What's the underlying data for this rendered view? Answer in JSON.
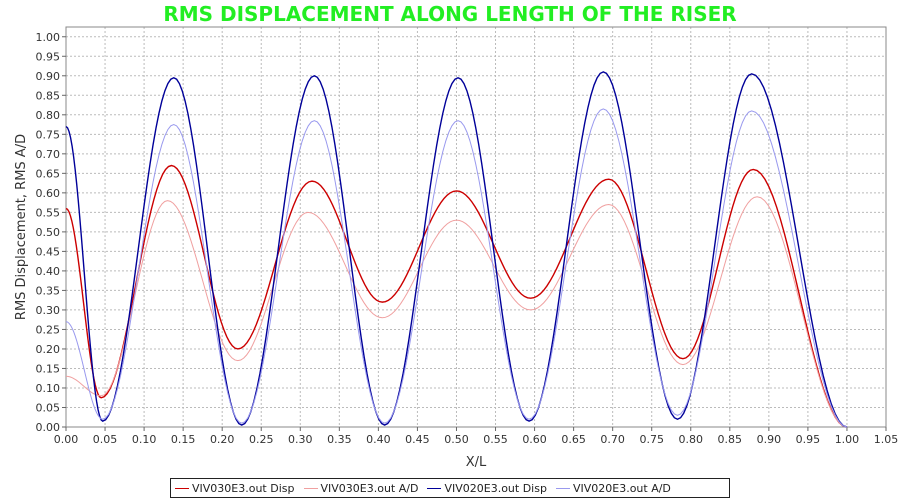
{
  "chart_data": {
    "type": "line",
    "title": "RMS DISPLACEMENT ALONG LENGTH OF THE RISER",
    "xlabel": "X/L",
    "ylabel": "RMS Displacement,  RMS A/D",
    "xlim": [
      0,
      1.05
    ],
    "ylim": [
      0,
      1.025
    ],
    "x_ticks": [
      "0.00",
      "0.05",
      "0.10",
      "0.15",
      "0.20",
      "0.25",
      "0.30",
      "0.35",
      "0.40",
      "0.45",
      "0.50",
      "0.55",
      "0.60",
      "0.65",
      "0.70",
      "0.75",
      "0.80",
      "0.85",
      "0.90",
      "0.95",
      "1.00",
      "1.05"
    ],
    "y_ticks": [
      "0.00",
      "0.05",
      "0.10",
      "0.15",
      "0.20",
      "0.25",
      "0.30",
      "0.35",
      "0.40",
      "0.45",
      "0.50",
      "0.55",
      "0.60",
      "0.65",
      "0.70",
      "0.75",
      "0.80",
      "0.85",
      "0.90",
      "0.95",
      "1.00"
    ],
    "grid": true,
    "legend_position": "bottom",
    "series": [
      {
        "name": "VIV030E3.out Disp",
        "color": "#cc0000",
        "x": [
          0.0,
          0.045,
          0.135,
          0.22,
          0.315,
          0.405,
          0.5,
          0.595,
          0.695,
          0.79,
          0.88,
          1.0
        ],
        "y": [
          0.56,
          0.075,
          0.67,
          0.2,
          0.63,
          0.32,
          0.605,
          0.33,
          0.635,
          0.175,
          0.66,
          0.0
        ]
      },
      {
        "name": "VIV030E3.out A/D",
        "color": "#f0a0a0",
        "x": [
          0.0,
          0.045,
          0.13,
          0.22,
          0.31,
          0.405,
          0.5,
          0.595,
          0.695,
          0.79,
          0.885,
          1.0
        ],
        "y": [
          0.13,
          0.08,
          0.58,
          0.17,
          0.55,
          0.28,
          0.53,
          0.3,
          0.57,
          0.16,
          0.59,
          0.0
        ]
      },
      {
        "name": "VIV020E3.out Disp",
        "color": "#000099",
        "x": [
          0.0,
          0.047,
          0.138,
          0.225,
          0.318,
          0.408,
          0.502,
          0.593,
          0.688,
          0.783,
          0.878,
          1.0
        ],
        "y": [
          0.77,
          0.015,
          0.895,
          0.005,
          0.9,
          0.005,
          0.895,
          0.015,
          0.91,
          0.02,
          0.905,
          0.0
        ]
      },
      {
        "name": "VIV020E3.out A/D",
        "color": "#9999ee",
        "x": [
          0.0,
          0.047,
          0.138,
          0.225,
          0.318,
          0.408,
          0.502,
          0.593,
          0.688,
          0.783,
          0.878,
          1.0
        ],
        "y": [
          0.27,
          0.02,
          0.775,
          0.01,
          0.785,
          0.01,
          0.785,
          0.02,
          0.815,
          0.03,
          0.81,
          0.0
        ]
      }
    ]
  }
}
